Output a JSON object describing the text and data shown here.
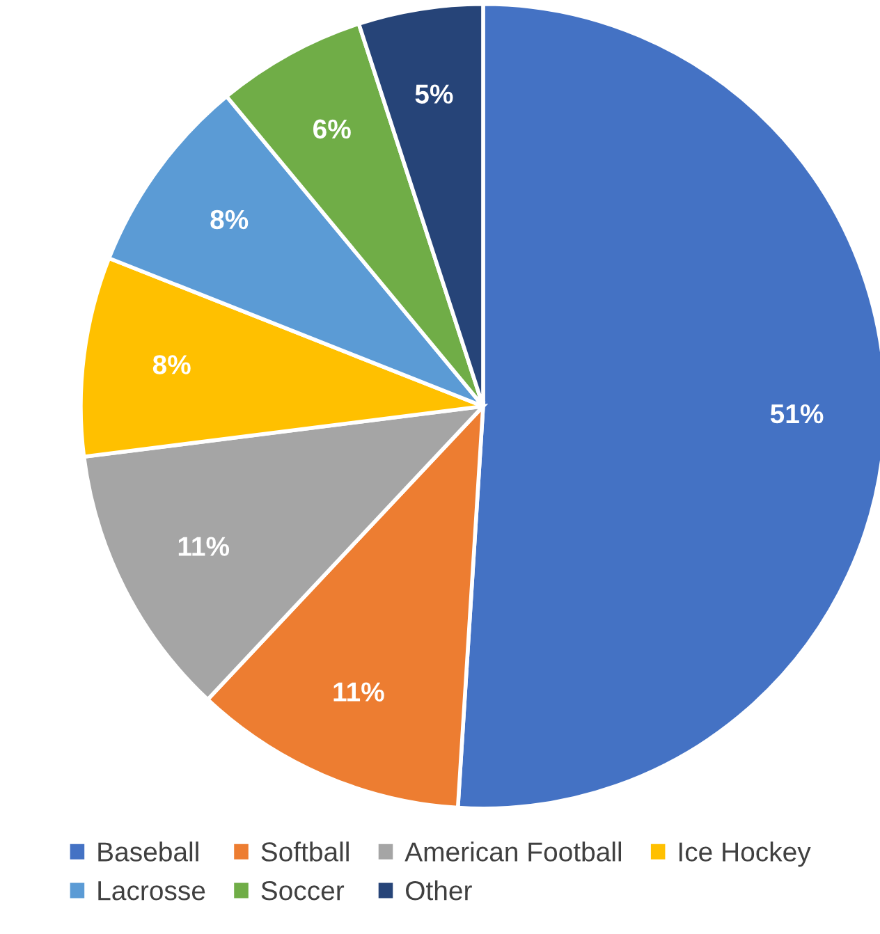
{
  "chart_data": {
    "type": "pie",
    "categories": [
      "Baseball",
      "Softball",
      "American Football",
      "Ice Hockey",
      "Lacrosse",
      "Soccer",
      "Other"
    ],
    "values": [
      51,
      11,
      11,
      8,
      8,
      6,
      5
    ],
    "colors": [
      "#4472c4",
      "#ed7d31",
      "#a5a5a5",
      "#ffc000",
      "#5b9bd5",
      "#70ad47",
      "#264478"
    ],
    "value_labels": [
      "51%",
      "11%",
      "11%",
      "8%",
      "8%",
      "6%",
      "5%"
    ],
    "legend": "bottom"
  }
}
